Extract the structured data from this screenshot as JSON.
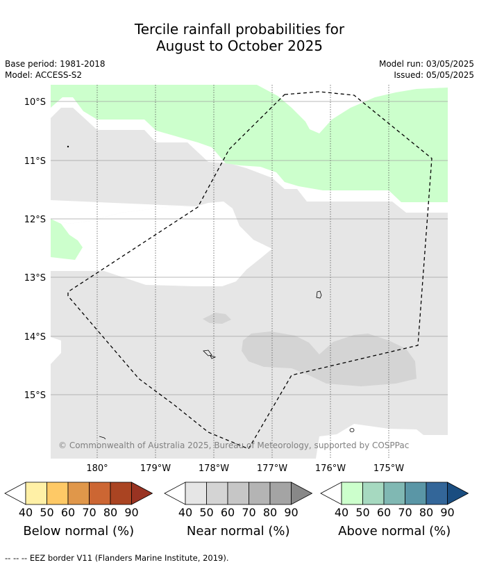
{
  "title": {
    "line1": "Tercile rainfall probabilities for",
    "line2": "August to October 2025"
  },
  "meta": {
    "base_period": "Base period: 1981-2018",
    "model": "Model: ACCESS-S2",
    "model_run": "Model run: 03/05/2025",
    "issued": "Issued: 05/05/2025"
  },
  "map": {
    "lat_labels": [
      "10°S",
      "11°S",
      "12°S",
      "13°S",
      "14°S",
      "15°S"
    ],
    "lon_labels": [
      "180°",
      "179°W",
      "178°W",
      "177°W",
      "176°W",
      "175°W"
    ],
    "copyright": "© Commonwealth of Australia 2025, Bureau of Meteorology, supported by COSPPac",
    "colors": {
      "above_normal_fill": "#ccffcc",
      "near_normal_fill": "#e6e6e6",
      "near_normal_60_fill": "#d4d4d4",
      "eez_border": "#000000"
    }
  },
  "legends": [
    {
      "name": "Below normal (%)",
      "ticks": [
        "40",
        "50",
        "60",
        "70",
        "80",
        "90"
      ],
      "colors": [
        "#fff0a6",
        "#fec966",
        "#e0974a",
        "#cc6633",
        "#aa4422",
        "#993322"
      ]
    },
    {
      "name": "Near normal (%)",
      "ticks": [
        "40",
        "50",
        "60",
        "70",
        "80",
        "90"
      ],
      "colors": [
        "#e6e6e6",
        "#d4d4d4",
        "#c6c6c6",
        "#b4b4b4",
        "#a4a4a4",
        "#888888"
      ]
    },
    {
      "name": "Above normal (%)",
      "ticks": [
        "40",
        "50",
        "60",
        "70",
        "80",
        "90"
      ],
      "colors": [
        "#ccffcc",
        "#a6d9c0",
        "#80b8b3",
        "#5a96a6",
        "#336699",
        "#1a4d80"
      ]
    }
  ],
  "footer": "--  --  -- EEZ border V11 (Flanders Marine Institute, 2019)."
}
